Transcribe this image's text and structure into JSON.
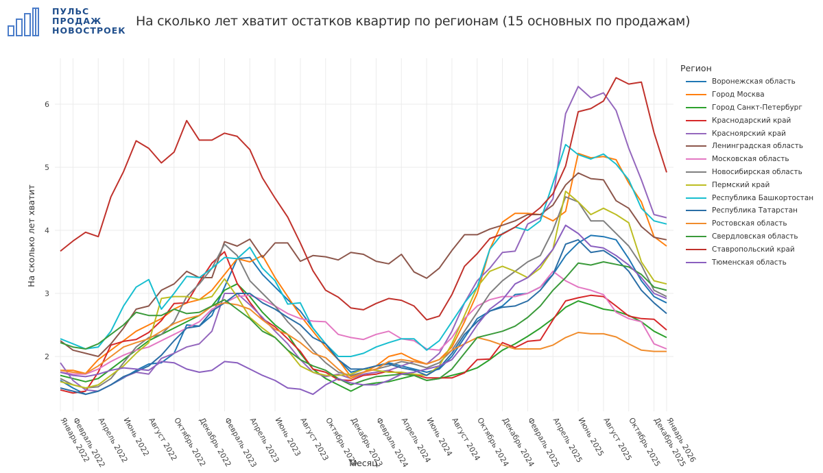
{
  "header": {
    "logo_lines": [
      "ПУЛЬС",
      "ПРОДАЖ",
      "НОВОСТРОЕК"
    ],
    "title": "На сколько лет хватит остатков квартир по регионам (15 основных по продажам)"
  },
  "chart_data": {
    "type": "line",
    "title": "На сколько лет хватит остатков квартир по регионам (15 основных по продажам)",
    "xlabel": "Месяц",
    "ylabel": "На сколько лет хватит",
    "ylim": [
      1.2,
      6.6
    ],
    "yticks": [
      2,
      3,
      4,
      5,
      6
    ],
    "grid": true,
    "legend_title": "Регион",
    "legend_position": "right",
    "x": [
      "Январь 2022",
      "Февраль 2022",
      "Март 2022",
      "Апрель 2022",
      "Май 2022",
      "Июнь 2022",
      "Июль 2022",
      "Август 2022",
      "Сентябрь 2022",
      "Октябрь 2022",
      "Ноябрь 2022",
      "Декабрь 2022",
      "Январь 2023",
      "Февраль 2023",
      "Март 2023",
      "Апрель 2023",
      "Май 2023",
      "Июнь 2023",
      "Июль 2023",
      "Август 2023",
      "Сентябрь 2023",
      "Октябрь 2023",
      "Ноябрь 2023",
      "Декабрь 2023",
      "Январь 2024",
      "Февраль 2024",
      "Март 2024",
      "Апрель 2024",
      "Май 2024",
      "Июнь 2024",
      "Июль 2024",
      "Август 2024",
      "Сентябрь 2024",
      "Октябрь 2024",
      "Ноябрь 2024",
      "Декабрь 2024",
      "Январь 2025",
      "Февраль 2025",
      "Март 2025",
      "Апрель 2025",
      "Май 2025",
      "Июнь 2025",
      "Июль 2025",
      "Август 2025",
      "Сентябрь 2025",
      "Октябрь 2025",
      "Ноябрь 2025",
      "Декабрь 2025",
      "Январь 2026"
    ],
    "xtick_labels": [
      {
        "i": 0,
        "label": "Январь 2022"
      },
      {
        "i": 1,
        "label": "Февраль 2022"
      },
      {
        "i": 3,
        "label": "Апрель 2022"
      },
      {
        "i": 5,
        "label": "Июнь 2022"
      },
      {
        "i": 7,
        "label": "Август 2022"
      },
      {
        "i": 9,
        "label": "Октябрь 2022"
      },
      {
        "i": 11,
        "label": "Декабрь 2022"
      },
      {
        "i": 13,
        "label": "Февраль 2023"
      },
      {
        "i": 15,
        "label": "Апрель 2023"
      },
      {
        "i": 17,
        "label": "Июнь 2023"
      },
      {
        "i": 19,
        "label": "Август 2023"
      },
      {
        "i": 21,
        "label": "Октябрь 2023"
      },
      {
        "i": 23,
        "label": "Декабрь 2023"
      },
      {
        "i": 25,
        "label": "Февраль 2024"
      },
      {
        "i": 27,
        "label": "Апрель 2024"
      },
      {
        "i": 29,
        "label": "Июнь 2024"
      },
      {
        "i": 31,
        "label": "Август 2024"
      },
      {
        "i": 33,
        "label": "Октябрь 2024"
      },
      {
        "i": 35,
        "label": "Декабрь 2024"
      },
      {
        "i": 37,
        "label": "Февраль 2025"
      },
      {
        "i": 39,
        "label": "Апрель 2025"
      },
      {
        "i": 41,
        "label": "Июнь 2025"
      },
      {
        "i": 43,
        "label": "Август 2025"
      },
      {
        "i": 45,
        "label": "Октябрь 2025"
      },
      {
        "i": 47,
        "label": "Декабрь 2025"
      },
      {
        "i": 48,
        "label": "Январь 2026"
      }
    ],
    "series": [
      {
        "name": "Воронежская область",
        "color": "#1f77b4",
        "values": [
          1.62,
          1.5,
          1.4,
          1.45,
          1.55,
          1.66,
          1.78,
          1.88,
          1.9,
          2.05,
          2.5,
          2.48,
          2.65,
          3.1,
          3.55,
          3.57,
          3.3,
          3.1,
          2.9,
          2.72,
          2.45,
          2.2,
          1.95,
          1.75,
          1.8,
          1.85,
          1.9,
          1.85,
          1.8,
          1.75,
          1.8,
          2.0,
          2.3,
          2.6,
          2.72,
          2.8,
          2.98,
          3.0,
          3.1,
          3.3,
          3.6,
          3.8,
          3.92,
          3.9,
          3.85,
          3.55,
          3.2,
          2.95,
          2.85
        ]
      },
      {
        "name": "Город Москва",
        "color": "#ff7f0e",
        "values": [
          1.78,
          1.78,
          1.73,
          1.95,
          2.1,
          2.25,
          2.4,
          2.5,
          2.6,
          2.75,
          2.85,
          2.9,
          3.05,
          3.3,
          3.55,
          3.5,
          3.6,
          3.25,
          2.95,
          2.65,
          2.4,
          2.15,
          1.95,
          1.68,
          1.75,
          1.85,
          2.0,
          2.05,
          1.95,
          1.88,
          1.95,
          2.15,
          2.55,
          3.0,
          3.7,
          4.13,
          4.27,
          4.27,
          4.25,
          4.15,
          4.3,
          5.22,
          5.15,
          5.17,
          5.12,
          4.75,
          4.45,
          3.9,
          3.75
        ]
      },
      {
        "name": "Город Санкт-Петербург",
        "color": "#2ca02c",
        "values": [
          1.7,
          1.65,
          1.6,
          1.65,
          1.8,
          1.95,
          2.1,
          2.25,
          2.35,
          2.45,
          2.55,
          2.65,
          2.8,
          3.05,
          3.15,
          2.95,
          2.7,
          2.5,
          2.35,
          2.05,
          1.8,
          1.65,
          1.55,
          1.45,
          1.55,
          1.58,
          1.6,
          1.65,
          1.7,
          1.62,
          1.65,
          1.7,
          1.75,
          1.82,
          1.95,
          2.1,
          2.2,
          2.32,
          2.45,
          2.6,
          2.78,
          2.88,
          2.82,
          2.75,
          2.72,
          2.65,
          2.55,
          2.4,
          2.3
        ]
      },
      {
        "name": "Краснодарский край",
        "color": "#d62728",
        "values": [
          1.47,
          1.42,
          1.45,
          1.75,
          2.18,
          2.24,
          2.27,
          2.38,
          2.57,
          2.84,
          2.85,
          3.18,
          3.48,
          3.66,
          3.16,
          2.86,
          2.6,
          2.47,
          2.28,
          2.08,
          1.8,
          1.75,
          1.63,
          1.62,
          1.7,
          1.72,
          1.77,
          1.73,
          1.72,
          1.66,
          1.66,
          1.66,
          1.74,
          1.95,
          1.96,
          2.22,
          2.14,
          2.24,
          2.26,
          2.58,
          2.88,
          2.93,
          2.97,
          2.95,
          2.8,
          2.64,
          2.6,
          2.59,
          2.42
        ]
      },
      {
        "name": "Красноярский край",
        "color": "#9467bd",
        "values": [
          1.9,
          1.62,
          1.47,
          1.45,
          1.55,
          1.67,
          1.75,
          1.72,
          1.97,
          2.05,
          2.15,
          2.2,
          2.4,
          3.0,
          3.0,
          2.82,
          2.62,
          2.4,
          2.2,
          1.95,
          1.75,
          1.68,
          1.72,
          1.65,
          1.72,
          1.75,
          1.78,
          1.85,
          1.92,
          1.88,
          2.05,
          2.4,
          2.85,
          3.2,
          3.4,
          3.65,
          3.67,
          4.1,
          4.2,
          4.5,
          5.85,
          6.28,
          6.1,
          6.18,
          5.9,
          5.3,
          4.8,
          4.25,
          4.2
        ]
      },
      {
        "name": "Ленинградская область",
        "color": "#8c564b",
        "values": [
          2.25,
          2.1,
          2.05,
          2.0,
          2.2,
          2.45,
          2.75,
          2.8,
          3.05,
          3.15,
          3.35,
          3.25,
          3.25,
          3.82,
          3.75,
          3.86,
          3.57,
          3.8,
          3.8,
          3.51,
          3.6,
          3.58,
          3.53,
          3.65,
          3.62,
          3.51,
          3.47,
          3.62,
          3.34,
          3.24,
          3.4,
          3.68,
          3.93,
          3.93,
          4.02,
          4.08,
          4.15,
          4.25,
          4.25,
          4.4,
          4.72,
          4.91,
          4.82,
          4.8,
          4.47,
          4.35,
          4.06,
          3.89,
          3.85
        ]
      },
      {
        "name": "Московская область",
        "color": "#e377c2",
        "values": [
          1.75,
          1.72,
          1.72,
          1.8,
          1.92,
          2.02,
          2.1,
          2.15,
          2.25,
          2.35,
          2.45,
          2.55,
          2.75,
          2.85,
          2.95,
          2.97,
          2.9,
          2.8,
          2.68,
          2.6,
          2.56,
          2.55,
          2.35,
          2.3,
          2.27,
          2.35,
          2.4,
          2.28,
          2.25,
          2.12,
          2.1,
          2.3,
          2.6,
          2.8,
          2.9,
          2.95,
          2.95,
          3.0,
          3.1,
          3.35,
          3.2,
          3.1,
          3.05,
          2.98,
          2.7,
          2.6,
          2.55,
          2.2,
          2.12
        ]
      },
      {
        "name": "Новосибирская область",
        "color": "#7f7f7f",
        "values": [
          1.65,
          1.55,
          1.5,
          1.52,
          1.65,
          1.9,
          2.15,
          2.3,
          2.35,
          2.55,
          2.95,
          3.15,
          3.4,
          3.78,
          3.6,
          3.2,
          3.0,
          2.8,
          2.55,
          2.35,
          2.1,
          1.9,
          1.75,
          1.7,
          1.75,
          1.8,
          1.85,
          1.92,
          1.88,
          1.82,
          1.9,
          2.1,
          2.4,
          2.7,
          3.0,
          3.2,
          3.35,
          3.5,
          3.6,
          4.0,
          4.53,
          4.45,
          4.15,
          4.15,
          3.95,
          3.75,
          3.45,
          3.05,
          2.95
        ]
      },
      {
        "name": "Пермский край",
        "color": "#bcbd22",
        "values": [
          1.6,
          1.55,
          1.5,
          1.55,
          1.7,
          1.85,
          2.05,
          2.22,
          2.92,
          2.95,
          2.95,
          2.9,
          2.95,
          3.23,
          2.95,
          2.62,
          2.45,
          2.3,
          2.1,
          1.85,
          1.75,
          1.7,
          1.7,
          1.72,
          1.8,
          1.78,
          1.75,
          1.75,
          1.72,
          1.7,
          1.85,
          2.2,
          2.65,
          3.1,
          3.35,
          3.43,
          3.35,
          3.25,
          3.4,
          3.7,
          4.62,
          4.45,
          4.25,
          4.35,
          4.25,
          4.12,
          3.5,
          3.2,
          3.15
        ]
      },
      {
        "name": "Республика Башкортостан",
        "color": "#17becf",
        "values": [
          2.28,
          2.2,
          2.12,
          2.15,
          2.4,
          2.8,
          3.1,
          3.22,
          2.75,
          3.0,
          3.27,
          3.25,
          3.4,
          3.57,
          3.55,
          3.73,
          3.4,
          3.2,
          2.83,
          2.85,
          2.45,
          2.2,
          2.0,
          2.0,
          2.05,
          2.15,
          2.22,
          2.28,
          2.28,
          2.1,
          2.25,
          2.55,
          2.85,
          3.1,
          3.7,
          3.95,
          4.05,
          4.0,
          4.15,
          4.75,
          5.36,
          5.2,
          5.13,
          5.21,
          5.05,
          4.8,
          4.35,
          4.15,
          4.1
        ]
      },
      {
        "name": "Республика Татарстан",
        "color": "#2a6ea6",
        "values": [
          1.5,
          1.45,
          1.4,
          1.45,
          1.55,
          1.68,
          1.76,
          1.85,
          2.02,
          2.25,
          2.45,
          2.48,
          2.72,
          2.85,
          3.0,
          3.0,
          2.85,
          2.75,
          2.62,
          2.5,
          2.3,
          2.2,
          1.95,
          1.8,
          1.8,
          1.85,
          1.88,
          1.82,
          1.78,
          1.7,
          1.82,
          2.05,
          2.35,
          2.55,
          2.72,
          2.78,
          2.8,
          2.88,
          3.05,
          3.3,
          3.78,
          3.85,
          3.65,
          3.68,
          3.55,
          3.35,
          3.05,
          2.85,
          2.68
        ]
      },
      {
        "name": "Ростовская область",
        "color": "#f08c2c",
        "values": [
          1.78,
          1.75,
          1.73,
          1.85,
          2.0,
          2.15,
          2.22,
          2.28,
          2.4,
          2.52,
          2.6,
          2.65,
          2.8,
          2.85,
          2.82,
          2.75,
          2.58,
          2.43,
          2.35,
          2.22,
          2.05,
          1.98,
          1.8,
          1.65,
          1.75,
          1.8,
          1.92,
          1.95,
          1.92,
          1.88,
          1.95,
          2.1,
          2.2,
          2.3,
          2.25,
          2.18,
          2.12,
          2.12,
          2.12,
          2.18,
          2.3,
          2.38,
          2.36,
          2.36,
          2.31,
          2.2,
          2.1,
          2.08,
          2.08
        ]
      },
      {
        "name": "Свердловская область",
        "color": "#3a9a3a",
        "values": [
          2.22,
          2.15,
          2.12,
          2.2,
          2.35,
          2.5,
          2.7,
          2.65,
          2.65,
          2.75,
          2.68,
          2.7,
          2.8,
          2.9,
          2.75,
          2.6,
          2.4,
          2.3,
          2.1,
          1.95,
          1.85,
          1.78,
          1.65,
          1.55,
          1.62,
          1.68,
          1.7,
          1.72,
          1.7,
          1.62,
          1.65,
          1.8,
          2.05,
          2.3,
          2.35,
          2.4,
          2.48,
          2.62,
          2.8,
          3.05,
          3.25,
          3.48,
          3.45,
          3.5,
          3.46,
          3.42,
          3.3,
          3.1,
          3.05
        ]
      },
      {
        "name": "Ставропольский край",
        "color": "#c0312b",
        "values": [
          3.67,
          3.83,
          3.97,
          3.9,
          4.53,
          4.93,
          5.42,
          5.3,
          5.07,
          5.24,
          5.74,
          5.43,
          5.43,
          5.54,
          5.49,
          5.28,
          4.83,
          4.51,
          4.21,
          3.8,
          3.36,
          3.05,
          2.94,
          2.77,
          2.74,
          2.84,
          2.92,
          2.89,
          2.8,
          2.58,
          2.64,
          2.98,
          3.43,
          3.63,
          3.87,
          3.94,
          4.05,
          4.2,
          4.36,
          4.58,
          5.02,
          5.88,
          5.93,
          6.05,
          6.42,
          6.32,
          6.35,
          5.55,
          4.92
        ]
      },
      {
        "name": "Тюменская область",
        "color": "#8a5fbf",
        "values": [
          1.75,
          1.7,
          1.68,
          1.72,
          1.78,
          1.82,
          1.8,
          1.78,
          1.92,
          1.9,
          1.8,
          1.75,
          1.78,
          1.92,
          1.9,
          1.8,
          1.7,
          1.62,
          1.5,
          1.48,
          1.4,
          1.55,
          1.65,
          1.58,
          1.55,
          1.55,
          1.62,
          1.72,
          1.75,
          1.8,
          1.85,
          1.95,
          2.2,
          2.5,
          2.75,
          2.9,
          3.15,
          3.25,
          3.45,
          3.7,
          4.08,
          3.95,
          3.75,
          3.72,
          3.6,
          3.45,
          3.25,
          3.0,
          2.92
        ]
      }
    ]
  }
}
